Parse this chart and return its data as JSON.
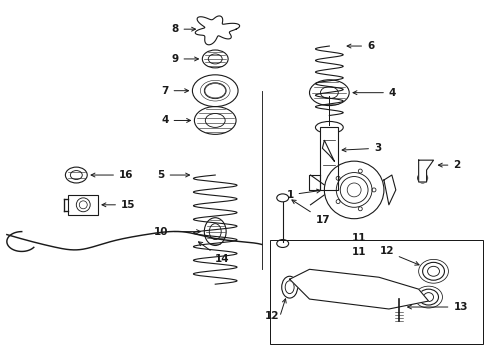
{
  "bg": "#ffffff",
  "lc": "#1a1a1a",
  "lw": 0.8,
  "fig_w": 4.9,
  "fig_h": 3.6,
  "dpi": 100,
  "fs": 7.5
}
